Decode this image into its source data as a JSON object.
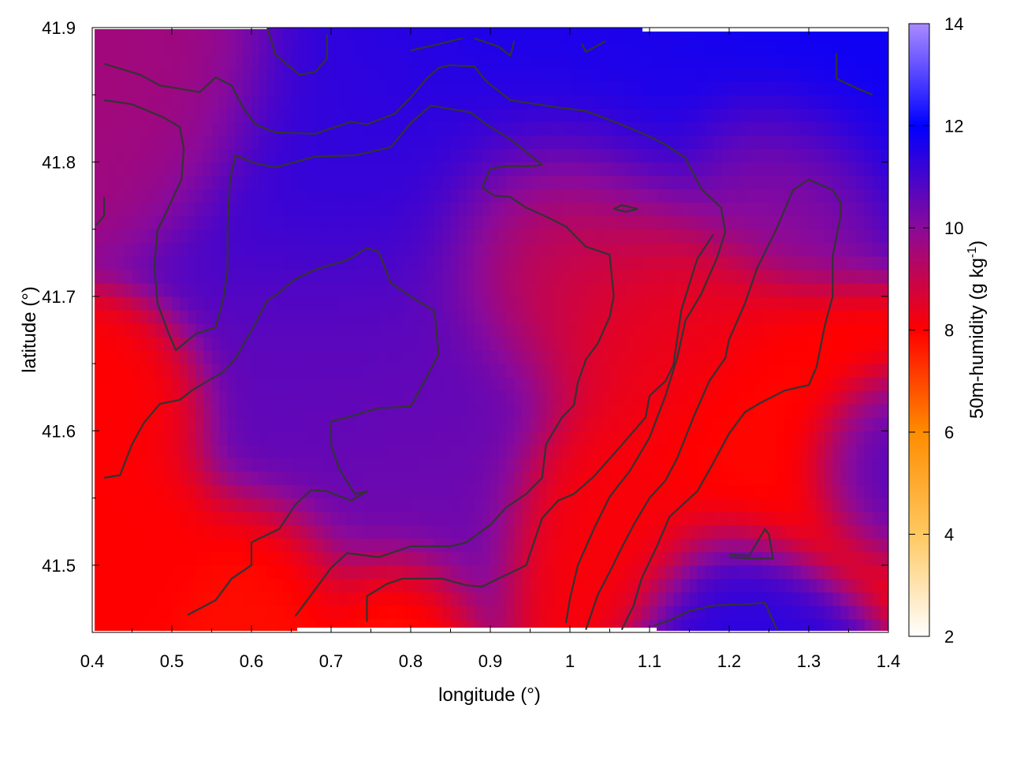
{
  "chart_data": {
    "type": "heatmap",
    "title": "",
    "xlabel": "longitude (°)",
    "ylabel": "latitude (°)",
    "colorbar_label": "50m-humidity (g kg",
    "colorbar_label_sup": "-1",
    "colorbar_label_end": ")",
    "xlim": [
      0.4,
      1.4
    ],
    "ylim": [
      41.45,
      41.9
    ],
    "x_ticks": [
      0.4,
      0.5,
      0.6,
      0.7,
      0.8,
      0.9,
      1.0,
      1.1,
      1.2,
      1.3,
      1.4
    ],
    "x_tick_labels": [
      "0.4",
      "0.5",
      "0.6",
      "0.7",
      "0.8",
      "0.9",
      "1",
      "1.1",
      "1.2",
      "1.3",
      "1.4"
    ],
    "y_ticks": [
      41.5,
      41.6,
      41.7,
      41.8,
      41.9
    ],
    "y_tick_labels": [
      "41.5",
      "41.6",
      "41.7",
      "41.8",
      "41.9"
    ],
    "colorbar_range": [
      2,
      14
    ],
    "colorbar_ticks": [
      2,
      4,
      6,
      8,
      10,
      12,
      14
    ],
    "colorbar_tick_labels": [
      "2",
      "4",
      "6",
      "8",
      "10",
      "12",
      "14"
    ],
    "colormap": [
      {
        "value": 2,
        "color": "#ffffff"
      },
      {
        "value": 4,
        "color": "#ffc860"
      },
      {
        "value": 6,
        "color": "#ff8c00"
      },
      {
        "value": 8,
        "color": "#ff0000"
      },
      {
        "value": 10,
        "color": "#8a0a9a"
      },
      {
        "value": 12,
        "color": "#0000ff"
      },
      {
        "value": 14,
        "color": "#a98bff"
      }
    ],
    "grid": false,
    "contour_color": "#333333",
    "field_regions": [
      {
        "lon": 0.47,
        "lat": 41.86,
        "r": 0.13,
        "value": 9.6
      },
      {
        "lon": 0.75,
        "lat": 41.8,
        "r": 0.18,
        "value": 11.3
      },
      {
        "lon": 1.0,
        "lat": 41.88,
        "r": 0.22,
        "value": 11.6
      },
      {
        "lon": 1.3,
        "lat": 41.87,
        "r": 0.14,
        "value": 11.8
      },
      {
        "lon": 0.75,
        "lat": 41.65,
        "r": 0.18,
        "value": 10.6
      },
      {
        "lon": 0.8,
        "lat": 41.55,
        "r": 0.12,
        "value": 10.4
      },
      {
        "lon": 0.98,
        "lat": 41.74,
        "r": 0.13,
        "value": 8.5
      },
      {
        "lon": 1.12,
        "lat": 41.68,
        "r": 0.12,
        "value": 8.3
      },
      {
        "lon": 1.25,
        "lat": 41.6,
        "r": 0.13,
        "value": 7.9
      },
      {
        "lon": 1.05,
        "lat": 41.53,
        "r": 0.11,
        "value": 8.1
      },
      {
        "lon": 0.44,
        "lat": 41.62,
        "r": 0.08,
        "value": 8.0
      },
      {
        "lon": 0.45,
        "lat": 41.52,
        "r": 0.09,
        "value": 8.0
      },
      {
        "lon": 0.62,
        "lat": 41.48,
        "r": 0.09,
        "value": 7.8
      },
      {
        "lon": 0.78,
        "lat": 41.47,
        "r": 0.07,
        "value": 7.5
      },
      {
        "lon": 1.2,
        "lat": 41.46,
        "r": 0.09,
        "value": 11.4
      },
      {
        "lon": 1.38,
        "lat": 41.58,
        "r": 0.07,
        "value": 11.0
      },
      {
        "lon": 1.26,
        "lat": 41.79,
        "r": 0.1,
        "value": 9.8
      }
    ],
    "contours": [
      [
        [
          0.62,
          41.9
        ],
        [
          0.63,
          41.88
        ],
        [
          0.66,
          41.865
        ],
        [
          0.68,
          41.867
        ],
        [
          0.695,
          41.877
        ],
        [
          0.695,
          41.895
        ]
      ],
      [
        [
          0.415,
          41.873
        ],
        [
          0.46,
          41.865
        ],
        [
          0.485,
          41.857
        ],
        [
          0.535,
          41.852
        ],
        [
          0.555,
          41.863
        ],
        [
          0.575,
          41.857
        ],
        [
          0.59,
          41.84
        ],
        [
          0.605,
          41.828
        ],
        [
          0.63,
          41.822
        ],
        [
          0.68,
          41.821
        ],
        [
          0.725,
          41.83
        ],
        [
          0.745,
          41.828
        ],
        [
          0.78,
          41.836
        ],
        [
          0.8,
          41.848
        ],
        [
          0.82,
          41.862
        ],
        [
          0.835,
          41.87
        ],
        [
          0.85,
          41.872
        ],
        [
          0.88,
          41.871
        ],
        [
          0.895,
          41.86
        ],
        [
          0.925,
          41.846
        ],
        [
          0.98,
          41.841
        ],
        [
          1.02,
          41.838
        ],
        [
          1.06,
          41.829
        ],
        [
          1.1,
          41.819
        ],
        [
          1.12,
          41.813
        ],
        [
          1.145,
          41.803
        ],
        [
          1.165,
          41.78
        ],
        [
          1.19,
          41.766
        ],
        [
          1.195,
          41.748
        ],
        [
          1.185,
          41.729
        ],
        [
          1.165,
          41.702
        ],
        [
          1.145,
          41.682
        ],
        [
          1.135,
          41.655
        ],
        [
          1.12,
          41.626
        ],
        [
          1.1,
          41.595
        ],
        [
          1.075,
          41.57
        ],
        [
          1.05,
          41.551
        ],
        [
          1.03,
          41.527
        ],
        [
          1.01,
          41.5
        ],
        [
          1.0,
          41.475
        ],
        [
          0.995,
          41.457
        ]
      ],
      [
        [
          0.415,
          41.846
        ],
        [
          0.45,
          41.843
        ],
        [
          0.49,
          41.833
        ],
        [
          0.51,
          41.826
        ],
        [
          0.515,
          41.81
        ],
        [
          0.512,
          41.787
        ],
        [
          0.495,
          41.765
        ],
        [
          0.482,
          41.749
        ],
        [
          0.478,
          41.723
        ],
        [
          0.482,
          41.695
        ],
        [
          0.495,
          41.674
        ],
        [
          0.505,
          41.66
        ],
        [
          0.53,
          41.672
        ],
        [
          0.555,
          41.677
        ],
        [
          0.565,
          41.699
        ],
        [
          0.57,
          41.72
        ],
        [
          0.57,
          41.75
        ],
        [
          0.573,
          41.787
        ],
        [
          0.58,
          41.805
        ],
        [
          0.605,
          41.799
        ],
        [
          0.63,
          41.796
        ],
        [
          0.68,
          41.804
        ],
        [
          0.73,
          41.805
        ],
        [
          0.775,
          41.811
        ],
        [
          0.8,
          41.829
        ],
        [
          0.825,
          41.842
        ],
        [
          0.845,
          41.84
        ],
        [
          0.875,
          41.837
        ],
        [
          0.895,
          41.828
        ],
        [
          0.925,
          41.817
        ],
        [
          0.965,
          41.798
        ],
        [
          0.955,
          41.797
        ],
        [
          0.92,
          41.797
        ],
        [
          0.9,
          41.795
        ],
        [
          0.89,
          41.781
        ],
        [
          0.905,
          41.775
        ],
        [
          0.925,
          41.774
        ],
        [
          0.945,
          41.766
        ],
        [
          0.975,
          41.758
        ],
        [
          0.995,
          41.752
        ],
        [
          1.01,
          41.743
        ],
        [
          1.02,
          41.737
        ],
        [
          1.04,
          41.733
        ],
        [
          1.05,
          41.731
        ],
        [
          1.055,
          41.7
        ],
        [
          1.05,
          41.685
        ],
        [
          1.035,
          41.665
        ],
        [
          1.02,
          41.653
        ],
        [
          1.01,
          41.636
        ],
        [
          1.005,
          41.619
        ],
        [
          0.99,
          41.61
        ],
        [
          0.97,
          41.59
        ],
        [
          0.965,
          41.565
        ],
        [
          0.945,
          41.553
        ],
        [
          0.92,
          41.543
        ],
        [
          0.9,
          41.53
        ],
        [
          0.87,
          41.517
        ],
        [
          0.85,
          41.514
        ],
        [
          0.8,
          41.514
        ],
        [
          0.76,
          41.506
        ],
        [
          0.72,
          41.509
        ],
        [
          0.7,
          41.498
        ],
        [
          0.675,
          41.478
        ],
        [
          0.655,
          41.462
        ]
      ],
      [
        [
          0.415,
          41.565
        ],
        [
          0.435,
          41.567
        ],
        [
          0.45,
          41.59
        ],
        [
          0.465,
          41.606
        ],
        [
          0.485,
          41.62
        ],
        [
          0.51,
          41.623
        ],
        [
          0.525,
          41.63
        ],
        [
          0.565,
          41.644
        ],
        [
          0.58,
          41.654
        ],
        [
          0.605,
          41.68
        ],
        [
          0.62,
          41.697
        ],
        [
          0.635,
          41.703
        ],
        [
          0.655,
          41.713
        ],
        [
          0.68,
          41.72
        ],
        [
          0.72,
          41.727
        ],
        [
          0.745,
          41.736
        ],
        [
          0.76,
          41.733
        ],
        [
          0.775,
          41.71
        ],
        [
          0.8,
          41.7
        ],
        [
          0.83,
          41.689
        ],
        [
          0.835,
          41.657
        ],
        [
          0.82,
          41.64
        ],
        [
          0.8,
          41.618
        ],
        [
          0.76,
          41.617
        ],
        [
          0.72,
          41.61
        ],
        [
          0.7,
          41.607
        ],
        [
          0.7,
          41.59
        ],
        [
          0.71,
          41.572
        ],
        [
          0.73,
          41.553
        ],
        [
          0.745,
          41.555
        ],
        [
          0.725,
          41.548
        ],
        [
          0.695,
          41.555
        ],
        [
          0.675,
          41.556
        ],
        [
          0.655,
          41.545
        ],
        [
          0.635,
          41.527
        ],
        [
          0.6,
          41.517
        ],
        [
          0.6,
          41.5
        ],
        [
          0.575,
          41.49
        ],
        [
          0.555,
          41.474
        ],
        [
          0.52,
          41.463
        ]
      ],
      [
        [
          0.745,
          41.458
        ],
        [
          0.745,
          41.477
        ],
        [
          0.77,
          41.486
        ],
        [
          0.79,
          41.49
        ],
        [
          0.84,
          41.49
        ],
        [
          0.87,
          41.485
        ],
        [
          0.89,
          41.484
        ],
        [
          0.91,
          41.49
        ],
        [
          0.935,
          41.497
        ],
        [
          0.945,
          41.5
        ],
        [
          0.965,
          41.535
        ],
        [
          0.985,
          41.548
        ],
        [
          1.005,
          41.553
        ],
        [
          1.03,
          41.566
        ],
        [
          1.06,
          41.586
        ],
        [
          1.095,
          41.61
        ],
        [
          1.1,
          41.626
        ],
        [
          1.12,
          41.637
        ],
        [
          1.13,
          41.649
        ],
        [
          1.14,
          41.69
        ],
        [
          1.16,
          41.728
        ],
        [
          1.18,
          41.746
        ]
      ],
      [
        [
          1.02,
          41.452
        ],
        [
          1.035,
          41.478
        ],
        [
          1.05,
          41.495
        ],
        [
          1.065,
          41.513
        ],
        [
          1.08,
          41.53
        ],
        [
          1.1,
          41.55
        ],
        [
          1.12,
          41.563
        ],
        [
          1.135,
          41.58
        ],
        [
          1.155,
          41.61
        ],
        [
          1.175,
          41.637
        ],
        [
          1.195,
          41.654
        ],
        [
          1.2,
          41.668
        ],
        [
          1.22,
          41.695
        ],
        [
          1.235,
          41.721
        ],
        [
          1.26,
          41.751
        ],
        [
          1.28,
          41.779
        ],
        [
          1.3,
          41.787
        ],
        [
          1.33,
          41.779
        ],
        [
          1.34,
          41.77
        ],
        [
          1.34,
          41.76
        ],
        [
          1.33,
          41.73
        ],
        [
          1.33,
          41.7
        ],
        [
          1.32,
          41.678
        ],
        [
          1.31,
          41.648
        ],
        [
          1.3,
          41.634
        ],
        [
          1.27,
          41.63
        ],
        [
          1.24,
          41.621
        ],
        [
          1.22,
          41.614
        ],
        [
          1.2,
          41.598
        ],
        [
          1.18,
          41.576
        ],
        [
          1.16,
          41.555
        ],
        [
          1.125,
          41.536
        ],
        [
          1.11,
          41.515
        ],
        [
          1.09,
          41.49
        ],
        [
          1.08,
          41.47
        ],
        [
          1.065,
          41.452
        ]
      ],
      [
        [
          1.105,
          41.455
        ],
        [
          1.125,
          41.459
        ],
        [
          1.15,
          41.466
        ],
        [
          1.18,
          41.47
        ],
        [
          1.22,
          41.471
        ],
        [
          1.245,
          41.472
        ],
        [
          1.26,
          41.452
        ]
      ],
      [
        [
          1.2,
          41.508
        ],
        [
          1.225,
          41.507
        ],
        [
          1.245,
          41.527
        ],
        [
          1.25,
          41.523
        ],
        [
          1.255,
          41.505
        ],
        [
          1.23,
          41.505
        ],
        [
          1.2,
          41.506
        ]
      ],
      [
        [
          1.335,
          41.881
        ],
        [
          1.335,
          41.862
        ],
        [
          1.36,
          41.855
        ],
        [
          1.38,
          41.85
        ]
      ],
      [
        [
          0.405,
          41.753
        ],
        [
          0.415,
          41.76
        ],
        [
          0.415,
          41.774
        ]
      ],
      [
        [
          1.055,
          41.765
        ],
        [
          1.065,
          41.768
        ],
        [
          1.085,
          41.765
        ],
        [
          1.07,
          41.763
        ],
        [
          1.055,
          41.765
        ]
      ],
      [
        [
          0.8,
          41.883
        ],
        [
          0.83,
          41.887
        ],
        [
          0.865,
          41.892
        ]
      ],
      [
        [
          0.88,
          41.892
        ],
        [
          0.91,
          41.886
        ],
        [
          0.925,
          41.879
        ],
        [
          0.93,
          41.89
        ]
      ],
      [
        [
          1.015,
          41.888
        ],
        [
          1.02,
          41.882
        ],
        [
          1.045,
          41.89
        ]
      ]
    ]
  }
}
